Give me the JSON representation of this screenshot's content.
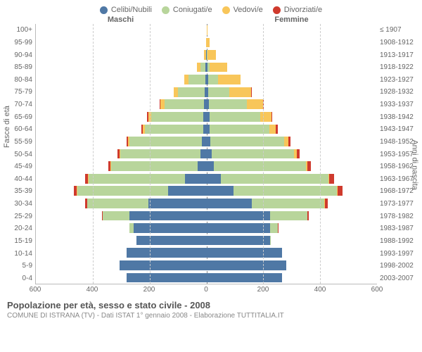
{
  "chart": {
    "type": "population-pyramid",
    "legend": [
      {
        "label": "Celibi/Nubili",
        "color": "#4f78a5"
      },
      {
        "label": "Coniugati/e",
        "color": "#b8d59b"
      },
      {
        "label": "Vedovi/e",
        "color": "#f8c65a"
      },
      {
        "label": "Divorziati/e",
        "color": "#cf3a2d"
      }
    ],
    "header_male": "Maschi",
    "header_female": "Femmine",
    "y_left_title": "Fasce di età",
    "y_right_title": "Anni di nascita",
    "x_max": 600,
    "x_ticks": [
      600,
      400,
      200,
      0,
      200,
      400,
      600
    ],
    "age_labels": [
      "100+",
      "95-99",
      "90-94",
      "85-89",
      "80-84",
      "75-79",
      "70-74",
      "65-69",
      "60-64",
      "55-59",
      "50-54",
      "45-49",
      "40-44",
      "35-39",
      "30-34",
      "25-29",
      "20-24",
      "15-19",
      "10-14",
      "5-9",
      "0-4"
    ],
    "birth_labels": [
      "≤ 1907",
      "1908-1912",
      "1913-1917",
      "1918-1922",
      "1923-1927",
      "1928-1932",
      "1933-1937",
      "1938-1942",
      "1943-1947",
      "1948-1952",
      "1953-1957",
      "1958-1962",
      "1963-1967",
      "1968-1972",
      "1973-1977",
      "1978-1982",
      "1983-1987",
      "1988-1992",
      "1993-1997",
      "1998-2002",
      "2003-2007"
    ],
    "male": [
      {
        "c": 0,
        "m": 0,
        "w": 0,
        "d": 0
      },
      {
        "c": 0,
        "m": 0,
        "w": 1,
        "d": 0
      },
      {
        "c": 1,
        "m": 1,
        "w": 6,
        "d": 0
      },
      {
        "c": 3,
        "m": 18,
        "w": 12,
        "d": 0
      },
      {
        "c": 4,
        "m": 60,
        "w": 14,
        "d": 0
      },
      {
        "c": 6,
        "m": 95,
        "w": 15,
        "d": 0
      },
      {
        "c": 8,
        "m": 140,
        "w": 14,
        "d": 2
      },
      {
        "c": 10,
        "m": 185,
        "w": 10,
        "d": 4
      },
      {
        "c": 12,
        "m": 205,
        "w": 7,
        "d": 5
      },
      {
        "c": 16,
        "m": 255,
        "w": 4,
        "d": 6
      },
      {
        "c": 22,
        "m": 280,
        "w": 3,
        "d": 8
      },
      {
        "c": 30,
        "m": 305,
        "w": 2,
        "d": 9
      },
      {
        "c": 75,
        "m": 340,
        "w": 1,
        "d": 12
      },
      {
        "c": 135,
        "m": 320,
        "w": 1,
        "d": 10
      },
      {
        "c": 205,
        "m": 215,
        "w": 0,
        "d": 6
      },
      {
        "c": 270,
        "m": 95,
        "w": 0,
        "d": 3
      },
      {
        "c": 255,
        "m": 15,
        "w": 0,
        "d": 0
      },
      {
        "c": 245,
        "m": 1,
        "w": 0,
        "d": 0
      },
      {
        "c": 280,
        "m": 0,
        "w": 0,
        "d": 0
      },
      {
        "c": 305,
        "m": 0,
        "w": 0,
        "d": 0
      },
      {
        "c": 280,
        "m": 0,
        "w": 0,
        "d": 0
      }
    ],
    "female": [
      {
        "c": 0,
        "m": 0,
        "w": 2,
        "d": 0
      },
      {
        "c": 1,
        "m": 0,
        "w": 9,
        "d": 0
      },
      {
        "c": 2,
        "m": 1,
        "w": 30,
        "d": 0
      },
      {
        "c": 4,
        "m": 8,
        "w": 60,
        "d": 0
      },
      {
        "c": 6,
        "m": 35,
        "w": 80,
        "d": 0
      },
      {
        "c": 6,
        "m": 75,
        "w": 75,
        "d": 1
      },
      {
        "c": 8,
        "m": 135,
        "w": 55,
        "d": 2
      },
      {
        "c": 10,
        "m": 180,
        "w": 38,
        "d": 4
      },
      {
        "c": 12,
        "m": 210,
        "w": 22,
        "d": 6
      },
      {
        "c": 14,
        "m": 260,
        "w": 14,
        "d": 8
      },
      {
        "c": 18,
        "m": 290,
        "w": 9,
        "d": 10
      },
      {
        "c": 25,
        "m": 325,
        "w": 5,
        "d": 12
      },
      {
        "c": 50,
        "m": 380,
        "w": 3,
        "d": 16
      },
      {
        "c": 95,
        "m": 365,
        "w": 2,
        "d": 18
      },
      {
        "c": 160,
        "m": 255,
        "w": 1,
        "d": 10
      },
      {
        "c": 225,
        "m": 130,
        "w": 0,
        "d": 4
      },
      {
        "c": 225,
        "m": 25,
        "w": 0,
        "d": 1
      },
      {
        "c": 225,
        "m": 2,
        "w": 0,
        "d": 0
      },
      {
        "c": 265,
        "m": 0,
        "w": 0,
        "d": 0
      },
      {
        "c": 280,
        "m": 0,
        "w": 0,
        "d": 0
      },
      {
        "c": 265,
        "m": 0,
        "w": 0,
        "d": 0
      }
    ],
    "colors": {
      "c": "#4f78a5",
      "m": "#b8d59b",
      "w": "#f8c65a",
      "d": "#cf3a2d"
    },
    "grid_color": "#cccccc",
    "axis_color": "#bbbbbb",
    "background": "#ffffff",
    "label_fontsize": 10
  },
  "footer": {
    "title": "Popolazione per età, sesso e stato civile - 2008",
    "sub": "COMUNE DI ISTRANA (TV) - Dati ISTAT 1° gennaio 2008 - Elaborazione TUTTITALIA.IT"
  }
}
